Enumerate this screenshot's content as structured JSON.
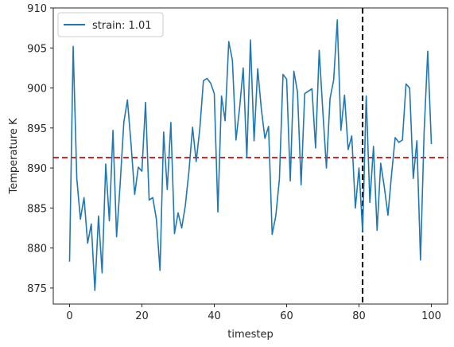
{
  "chart_data": {
    "type": "line",
    "xlabel": "timestep",
    "ylabel": "Temperature K",
    "xlim": [
      -4.5,
      104.5
    ],
    "ylim": [
      873,
      910
    ],
    "xticks": [
      0,
      20,
      40,
      60,
      80,
      100
    ],
    "yticks": [
      875,
      880,
      885,
      890,
      895,
      900,
      905,
      910
    ],
    "grid": false,
    "legend_position": "upper-left",
    "series": [
      {
        "name": "strain: 1.01",
        "color": "#1f77b4",
        "x": [
          0,
          1,
          2,
          3,
          4,
          5,
          6,
          7,
          8,
          9,
          10,
          11,
          12,
          13,
          14,
          15,
          16,
          17,
          18,
          19,
          20,
          21,
          22,
          23,
          24,
          25,
          26,
          27,
          28,
          29,
          30,
          31,
          32,
          33,
          34,
          35,
          36,
          37,
          38,
          39,
          40,
          41,
          42,
          43,
          44,
          45,
          46,
          47,
          48,
          49,
          50,
          51,
          52,
          53,
          54,
          55,
          56,
          57,
          58,
          59,
          60,
          61,
          62,
          63,
          64,
          65,
          66,
          67,
          68,
          69,
          70,
          71,
          72,
          73,
          74,
          75,
          76,
          77,
          78,
          79,
          80,
          81,
          82,
          83,
          84,
          85,
          86,
          87,
          88,
          89,
          90,
          91,
          92,
          93,
          94,
          95,
          96,
          97,
          98,
          99,
          100
        ],
        "y": [
          878.3,
          905.2,
          888.7,
          883.6,
          886.3,
          880.6,
          883.0,
          874.7,
          884.0,
          876.9,
          890.5,
          883.4,
          894.7,
          881.4,
          888.1,
          895.7,
          898.5,
          893.0,
          886.7,
          890.1,
          889.6,
          898.2,
          886.0,
          886.3,
          883.6,
          877.2,
          894.5,
          887.3,
          895.7,
          881.8,
          884.4,
          882.5,
          885.3,
          889.6,
          895.1,
          890.8,
          894.9,
          900.9,
          901.2,
          900.6,
          899.3,
          884.5,
          899.0,
          895.9,
          905.8,
          903.5,
          893.5,
          897.5,
          902.5,
          891.3,
          906.0,
          893.4,
          902.4,
          897.4,
          893.7,
          895.2,
          881.7,
          884.0,
          888.6,
          901.7,
          901.1,
          888.4,
          902.1,
          899.5,
          887.9,
          899.3,
          899.6,
          899.9,
          892.5,
          904.7,
          897.1,
          890.0,
          898.7,
          901.0,
          908.5,
          894.7,
          899.1,
          892.3,
          894.0,
          885.0,
          890.0,
          882.0,
          899.0,
          885.7,
          892.7,
          882.2,
          890.6,
          887.6,
          884.1,
          889.2,
          893.8,
          893.2,
          893.5,
          900.5,
          900.0,
          888.7,
          893.4,
          878.5,
          894.5,
          904.6,
          893.0
        ]
      }
    ],
    "reference_lines": [
      {
        "orientation": "horizontal",
        "value": 891.3,
        "color": "#d62728",
        "style": "dashed"
      },
      {
        "orientation": "vertical",
        "value": 81,
        "color": "#000000",
        "style": "dashed"
      }
    ]
  }
}
